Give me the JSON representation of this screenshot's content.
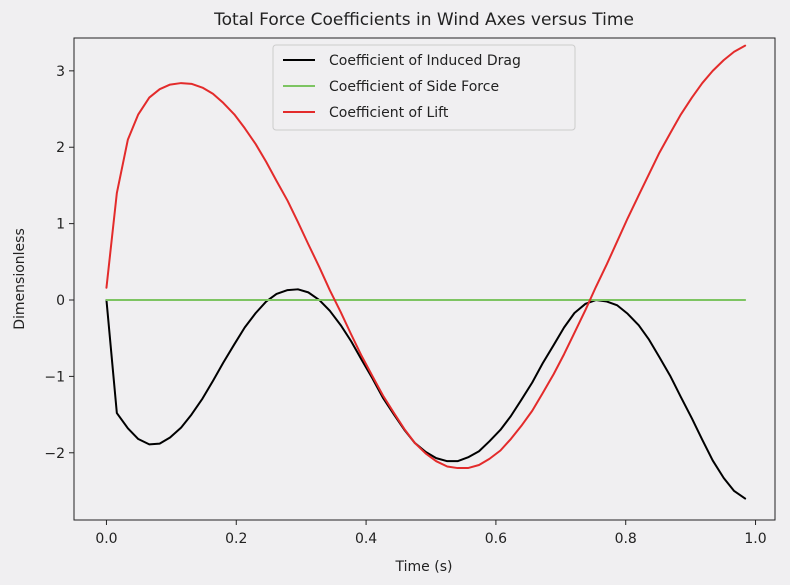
{
  "chart_data": {
    "type": "line",
    "title": "Total Force Coefficients in Wind Axes versus Time",
    "xlabel": "Time (s)",
    "ylabel": "Dimensionless",
    "xlim": [
      -0.05,
      1.03
    ],
    "ylim": [
      -2.88,
      3.43
    ],
    "xticks": [
      0.0,
      0.2,
      0.4,
      0.6,
      0.8,
      1.0
    ],
    "xtick_labels": [
      "0.0",
      "0.2",
      "0.4",
      "0.6",
      "0.8",
      "1.0"
    ],
    "yticks": [
      -2,
      -1,
      0,
      1,
      2,
      3
    ],
    "ytick_labels": [
      "−2",
      "−1",
      "0",
      "1",
      "2",
      "3"
    ],
    "grid": false,
    "legend_position": "top-center",
    "series": [
      {
        "name": "Coefficient of Induced Drag",
        "color": "#000000",
        "x": [
          0.0,
          0.016,
          0.033,
          0.049,
          0.066,
          0.082,
          0.098,
          0.115,
          0.131,
          0.148,
          0.164,
          0.18,
          0.197,
          0.213,
          0.23,
          0.246,
          0.262,
          0.279,
          0.295,
          0.311,
          0.328,
          0.344,
          0.361,
          0.377,
          0.393,
          0.41,
          0.426,
          0.443,
          0.459,
          0.475,
          0.492,
          0.508,
          0.525,
          0.541,
          0.557,
          0.574,
          0.59,
          0.607,
          0.623,
          0.639,
          0.656,
          0.672,
          0.689,
          0.705,
          0.721,
          0.738,
          0.754,
          0.771,
          0.787,
          0.803,
          0.82,
          0.836,
          0.852,
          0.869,
          0.885,
          0.902,
          0.918,
          0.934,
          0.951,
          0.967,
          0.984
        ],
        "y": [
          0.0,
          -1.48,
          -1.68,
          -1.82,
          -1.89,
          -1.88,
          -1.8,
          -1.67,
          -1.5,
          -1.29,
          -1.06,
          -0.82,
          -0.58,
          -0.36,
          -0.17,
          -0.02,
          0.08,
          0.13,
          0.14,
          0.1,
          0.0,
          -0.14,
          -0.33,
          -0.54,
          -0.78,
          -1.03,
          -1.28,
          -1.5,
          -1.7,
          -1.87,
          -1.99,
          -2.07,
          -2.11,
          -2.11,
          -2.06,
          -1.98,
          -1.85,
          -1.7,
          -1.52,
          -1.31,
          -1.08,
          -0.83,
          -0.59,
          -0.36,
          -0.17,
          -0.05,
          0.0,
          -0.02,
          -0.07,
          -0.18,
          -0.33,
          -0.52,
          -0.75,
          -1.0,
          -1.27,
          -1.55,
          -1.83,
          -2.1,
          -2.33,
          -2.5,
          -2.6
        ]
      },
      {
        "name": "Coefficient of Side Force",
        "color": "#7dc462",
        "x": [
          0.0,
          0.984
        ],
        "y": [
          0.0,
          0.0
        ]
      },
      {
        "name": "Coefficient of Lift",
        "color": "#e32b2b",
        "x": [
          0.0,
          0.016,
          0.033,
          0.049,
          0.066,
          0.082,
          0.098,
          0.115,
          0.131,
          0.148,
          0.164,
          0.18,
          0.197,
          0.213,
          0.23,
          0.246,
          0.262,
          0.279,
          0.295,
          0.311,
          0.328,
          0.344,
          0.361,
          0.377,
          0.393,
          0.41,
          0.426,
          0.443,
          0.459,
          0.475,
          0.492,
          0.508,
          0.525,
          0.541,
          0.557,
          0.574,
          0.59,
          0.607,
          0.623,
          0.639,
          0.656,
          0.672,
          0.689,
          0.705,
          0.721,
          0.738,
          0.754,
          0.771,
          0.787,
          0.803,
          0.82,
          0.836,
          0.852,
          0.869,
          0.885,
          0.902,
          0.918,
          0.934,
          0.951,
          0.967,
          0.984
        ],
        "y": [
          0.16,
          1.4,
          2.1,
          2.43,
          2.65,
          2.76,
          2.82,
          2.84,
          2.83,
          2.78,
          2.7,
          2.58,
          2.43,
          2.25,
          2.04,
          1.81,
          1.56,
          1.3,
          1.02,
          0.73,
          0.43,
          0.13,
          -0.16,
          -0.45,
          -0.73,
          -1.0,
          -1.25,
          -1.48,
          -1.69,
          -1.87,
          -2.01,
          -2.11,
          -2.18,
          -2.2,
          -2.2,
          -2.16,
          -2.08,
          -1.97,
          -1.82,
          -1.65,
          -1.45,
          -1.22,
          -0.97,
          -0.71,
          -0.43,
          -0.13,
          0.17,
          0.47,
          0.77,
          1.07,
          1.37,
          1.65,
          1.93,
          2.19,
          2.43,
          2.65,
          2.84,
          3.0,
          3.14,
          3.25,
          3.33
        ]
      }
    ]
  }
}
